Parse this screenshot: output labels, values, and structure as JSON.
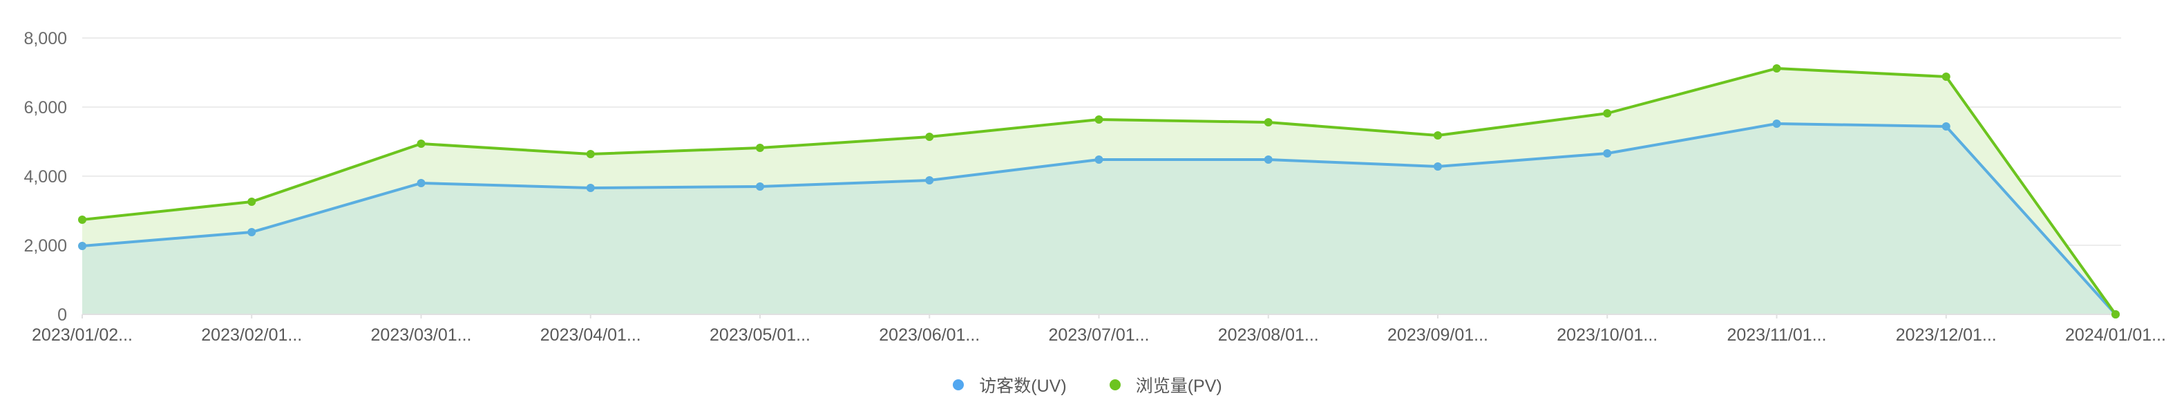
{
  "chart_data": {
    "type": "area",
    "title": "",
    "xlabel": "",
    "ylabel": "",
    "ylim": [
      0,
      8000
    ],
    "yticks": [
      0,
      2000,
      4000,
      6000,
      8000
    ],
    "ytick_labels": [
      "0",
      "2,000",
      "4,000",
      "6,000",
      "8,000"
    ],
    "grid": true,
    "legend_position": "bottom",
    "categories": [
      "2023/01/02...",
      "2023/02/01...",
      "2023/03/01...",
      "2023/04/01...",
      "2023/05/01...",
      "2023/06/01...",
      "2023/07/01...",
      "2023/08/01...",
      "2023/09/01...",
      "2023/10/01...",
      "2023/11/01...",
      "2023/12/01...",
      "2024/01/01..."
    ],
    "series": [
      {
        "name": "访客数(UV)",
        "color": "#5aaee0",
        "values": [
          1980,
          2380,
          3800,
          3660,
          3700,
          3880,
          4480,
          4480,
          4280,
          4660,
          5520,
          5440,
          0
        ]
      },
      {
        "name": "浏览量(PV)",
        "color": "#6cc41f",
        "values": [
          2740,
          3260,
          4940,
          4640,
          4820,
          5140,
          5640,
          5560,
          5180,
          5820,
          7120,
          6880,
          0
        ]
      }
    ]
  },
  "legend": {
    "items": [
      {
        "label": "访客数(UV)",
        "color": "#52a7f0"
      },
      {
        "label": "浏览量(PV)",
        "color": "#6cc41f"
      }
    ]
  }
}
